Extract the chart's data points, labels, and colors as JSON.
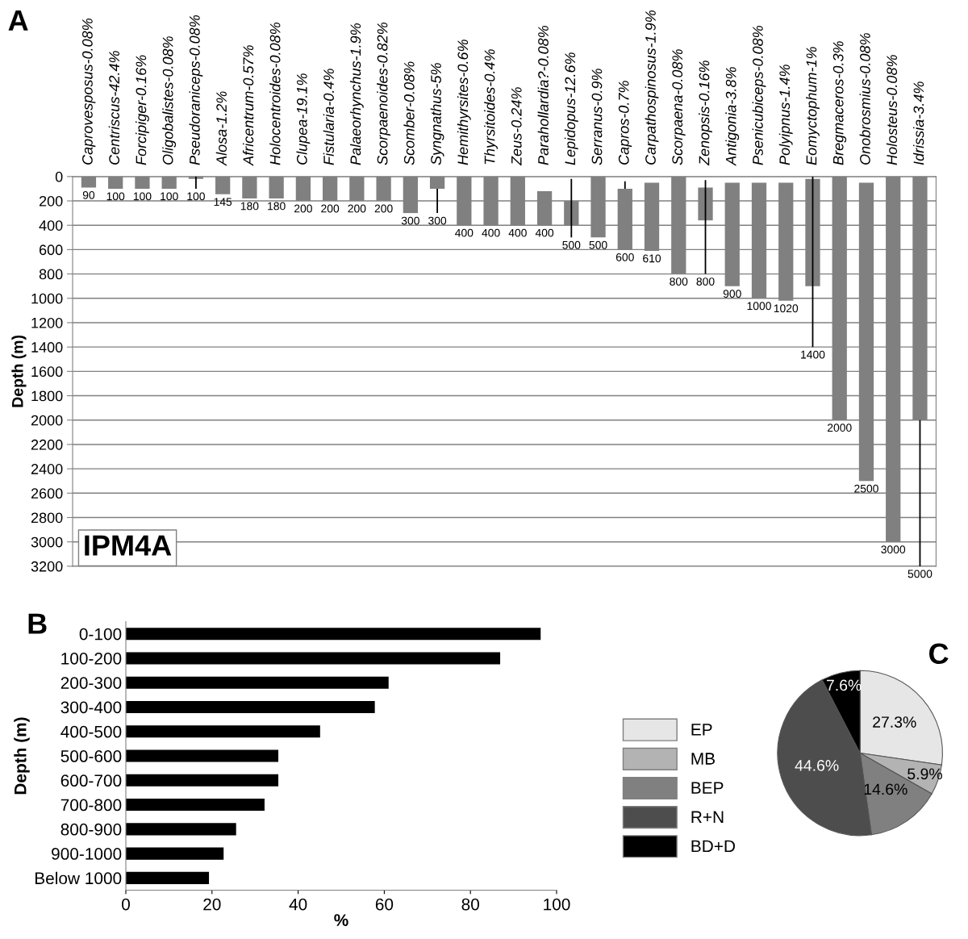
{
  "chart_data": [
    {
      "type": "bar",
      "title": "A",
      "ylabel": "Depth (m)",
      "annotations": [
        "IPM4A",
        {
          "text": "100",
          "x": "Pseudoraniceps-0.08%",
          "y": 100
        },
        {
          "text": "300",
          "x": "Syngnathus-5%",
          "y": 300
        },
        {
          "text": "500",
          "x": "Lepidopus-12.6%",
          "y": 500
        },
        {
          "text": "800",
          "x": "Zenopsis-0.16%",
          "y": 800
        },
        {
          "text": "1400",
          "x": "Eomyctophum-1%",
          "y": 1400
        },
        "5000"
      ],
      "categories": [
        "Caprovesposus-0.08%",
        "Centriscus-42.4%",
        "Forcipiger-0.16%",
        "Oligobalistes-0.08%",
        "Pseudoraniceps-0.08%",
        "Alosa-1.2%",
        "Africentrum-0.57%",
        "Holocentroides-0.08%",
        "Clupea-19.1%",
        "Fistularia-0.4%",
        "Palaeorhynchus-1.9%",
        "Scorpaenoides-0.82%",
        "Scomber-0.08%",
        "Syngnathus-5%",
        "Hemithyrsites-0.6%",
        "Thyrsitoides-0.4%",
        "Zeus-0.24%",
        "Parahollardia?-0.08%",
        "Lepidopus-12.6%",
        "Serranus-0.9%",
        "Capros-0.7%",
        "Carpathospinosus-1.9%",
        "Scorpaena-0.08%",
        "Zenopsis-0.16%",
        "Antigonia-3.8%",
        "Psenicubiceps-0.08%",
        "Polyipnus-1.4%",
        "Eomyctophum-1%",
        "Bregmaceros-0.3%",
        "Onobrosmius-0.08%",
        "Holosteus-0.08%",
        "Idrissia-3.4%"
      ],
      "base": [
        0,
        0,
        0,
        0,
        0,
        0,
        0,
        0,
        0,
        0,
        0,
        0,
        0,
        0,
        0,
        0,
        0,
        120,
        200,
        0,
        100,
        50,
        0,
        90,
        50,
        50,
        50,
        20,
        0,
        50,
        0,
        0
      ],
      "values": [
        90,
        100,
        100,
        100,
        20,
        145,
        180,
        180,
        200,
        200,
        200,
        200,
        300,
        100,
        400,
        400,
        400,
        280,
        200,
        500,
        500,
        560,
        800,
        270,
        850,
        950,
        970,
        880,
        2000,
        2450,
        3000,
        2000
      ],
      "errors": [
        null,
        null,
        null,
        null,
        [
          0,
          100
        ],
        null,
        null,
        null,
        null,
        null,
        null,
        null,
        null,
        [
          100,
          300
        ],
        null,
        null,
        null,
        null,
        [
          20,
          500
        ],
        null,
        [
          40,
          100
        ],
        null,
        null,
        [
          30,
          800
        ],
        null,
        null,
        null,
        [
          0,
          1400
        ],
        null,
        null,
        null,
        [
          2000,
          3200
        ]
      ],
      "value_labels": [
        "90",
        "100",
        "100",
        "100",
        null,
        "145",
        "180",
        "180",
        "200",
        "200",
        "200",
        "200",
        "300",
        null,
        "400",
        "400",
        "400",
        "400",
        null,
        "500",
        "600",
        "610",
        "800",
        null,
        "900",
        "1000",
        "1020",
        null,
        "2000",
        "2500",
        "3000",
        null
      ],
      "color": "#808080",
      "ylim": [
        3200,
        0
      ],
      "yticks": [
        0,
        200,
        400,
        600,
        800,
        1000,
        1200,
        1400,
        1600,
        1800,
        2000,
        2200,
        2400,
        2600,
        2800,
        3000,
        3200
      ],
      "grid": "y"
    },
    {
      "type": "bar",
      "orientation": "horizontal",
      "title": "B",
      "xlabel": "%",
      "ylabel": "Depth (m)",
      "categories": [
        "0-100",
        "100-200",
        "200-300",
        "300-400",
        "400-500",
        "500-600",
        "600-700",
        "700-800",
        "800-900",
        "900-1000",
        "Below 1000"
      ],
      "values": [
        96.3,
        86.9,
        61.0,
        57.8,
        45.1,
        35.4,
        35.4,
        32.2,
        25.6,
        22.7,
        19.3
      ],
      "color": "#000000",
      "xlim": [
        0,
        100
      ],
      "xticks": [
        0,
        20,
        40,
        60,
        80,
        100
      ]
    },
    {
      "type": "pie",
      "title": "C",
      "legend": "left",
      "categories": [
        "EP",
        "MB",
        "BEP",
        "R+N",
        "BD+D"
      ],
      "values": [
        27.3,
        5.9,
        14.6,
        44.6,
        7.6
      ],
      "value_labels": [
        "27.3%",
        "5.9%",
        "14.6%",
        "44.6%",
        "7.6%"
      ],
      "colors": [
        "#e6e6e6",
        "#b3b3b3",
        "#808080",
        "#4d4d4d",
        "#000000"
      ]
    }
  ]
}
